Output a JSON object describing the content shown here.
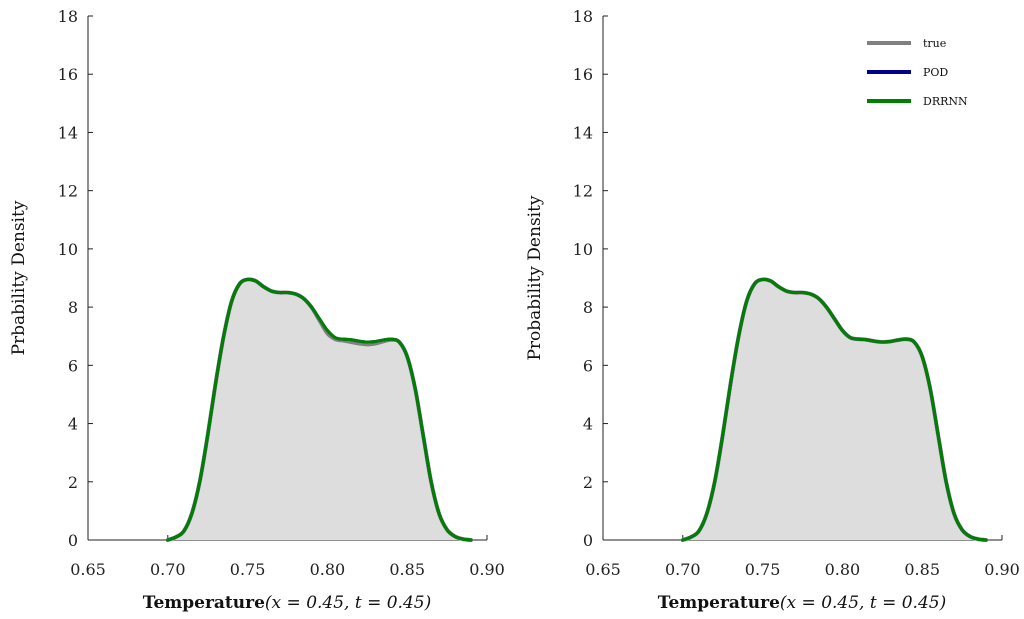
{
  "chart_data": [
    {
      "type": "area",
      "xlabel_main": "Temperature",
      "xlabel_math": "(x = 0.45,    t = 0.45)",
      "ylabel": "Prbability Density",
      "xlim": [
        0.65,
        0.9
      ],
      "ylim": [
        0,
        18
      ],
      "xticks": [
        "0.65",
        "0.70",
        "0.75",
        "0.80",
        "0.85",
        "0.90"
      ],
      "yticks": [
        "0",
        "2",
        "4",
        "6",
        "8",
        "10",
        "12",
        "14",
        "16",
        "18"
      ],
      "fill_color": "#dddddd",
      "legend": null,
      "series": [
        {
          "name": "true",
          "color": "#808080",
          "x": [
            0.7,
            0.705,
            0.71,
            0.715,
            0.72,
            0.725,
            0.73,
            0.735,
            0.74,
            0.745,
            0.75,
            0.755,
            0.76,
            0.765,
            0.77,
            0.775,
            0.78,
            0.785,
            0.79,
            0.795,
            0.8,
            0.805,
            0.81,
            0.815,
            0.82,
            0.825,
            0.83,
            0.835,
            0.84,
            0.845,
            0.85,
            0.855,
            0.86,
            0.865,
            0.87,
            0.875,
            0.88,
            0.885,
            0.89
          ],
          "y": [
            0.0,
            0.1,
            0.3,
            0.9,
            2.0,
            3.6,
            5.4,
            7.0,
            8.2,
            8.8,
            8.95,
            8.9,
            8.7,
            8.55,
            8.5,
            8.5,
            8.45,
            8.3,
            8.0,
            7.55,
            7.1,
            6.9,
            6.85,
            6.8,
            6.75,
            6.72,
            6.75,
            6.82,
            6.88,
            6.8,
            6.3,
            5.2,
            3.6,
            2.0,
            0.9,
            0.35,
            0.12,
            0.03,
            0.0
          ]
        },
        {
          "name": "POD",
          "color": "#00008b",
          "x": [
            0.7,
            0.705,
            0.71,
            0.715,
            0.72,
            0.725,
            0.73,
            0.735,
            0.74,
            0.745,
            0.75,
            0.755,
            0.76,
            0.765,
            0.77,
            0.775,
            0.78,
            0.785,
            0.79,
            0.795,
            0.8,
            0.805,
            0.81,
            0.815,
            0.82,
            0.825,
            0.83,
            0.835,
            0.84,
            0.845,
            0.85,
            0.855,
            0.86,
            0.865,
            0.87,
            0.875,
            0.88,
            0.885,
            0.89
          ],
          "y": [
            0.0,
            0.1,
            0.3,
            0.9,
            2.0,
            3.6,
            5.4,
            7.0,
            8.2,
            8.8,
            8.95,
            8.9,
            8.7,
            8.55,
            8.5,
            8.5,
            8.45,
            8.3,
            8.0,
            7.6,
            7.2,
            6.95,
            6.9,
            6.88,
            6.83,
            6.8,
            6.82,
            6.87,
            6.9,
            6.8,
            6.3,
            5.2,
            3.6,
            2.0,
            0.9,
            0.35,
            0.12,
            0.03,
            0.0
          ]
        },
        {
          "name": "DRRNN",
          "color": "#008000",
          "x": [
            0.7,
            0.705,
            0.71,
            0.715,
            0.72,
            0.725,
            0.73,
            0.735,
            0.74,
            0.745,
            0.75,
            0.755,
            0.76,
            0.765,
            0.77,
            0.775,
            0.78,
            0.785,
            0.79,
            0.795,
            0.8,
            0.805,
            0.81,
            0.815,
            0.82,
            0.825,
            0.83,
            0.835,
            0.84,
            0.845,
            0.85,
            0.855,
            0.86,
            0.865,
            0.87,
            0.875,
            0.88,
            0.885,
            0.89
          ],
          "y": [
            0.0,
            0.1,
            0.3,
            0.9,
            2.0,
            3.6,
            5.4,
            7.0,
            8.2,
            8.8,
            8.95,
            8.9,
            8.7,
            8.55,
            8.5,
            8.5,
            8.45,
            8.3,
            8.0,
            7.6,
            7.2,
            6.95,
            6.9,
            6.88,
            6.83,
            6.8,
            6.82,
            6.87,
            6.9,
            6.8,
            6.3,
            5.2,
            3.6,
            2.0,
            0.9,
            0.35,
            0.12,
            0.03,
            0.0
          ]
        }
      ]
    },
    {
      "type": "area",
      "xlabel_main": "Temperature",
      "xlabel_math": "(x = 0.45,    t = 0.45)",
      "ylabel": "Probability Density",
      "xlim": [
        0.65,
        0.9
      ],
      "ylim": [
        0,
        18
      ],
      "xticks": [
        "0.65",
        "0.70",
        "0.75",
        "0.80",
        "0.85",
        "0.90"
      ],
      "yticks": [
        "0",
        "2",
        "4",
        "6",
        "8",
        "10",
        "12",
        "14",
        "16",
        "18"
      ],
      "fill_color": "#dddddd",
      "legend": "top-right",
      "series": [
        {
          "name": "true",
          "color": "#808080",
          "x": [
            0.7,
            0.705,
            0.71,
            0.715,
            0.72,
            0.725,
            0.73,
            0.735,
            0.74,
            0.745,
            0.75,
            0.755,
            0.76,
            0.765,
            0.77,
            0.775,
            0.78,
            0.785,
            0.79,
            0.795,
            0.8,
            0.805,
            0.81,
            0.815,
            0.82,
            0.825,
            0.83,
            0.835,
            0.84,
            0.845,
            0.85,
            0.855,
            0.86,
            0.865,
            0.87,
            0.875,
            0.88,
            0.885,
            0.89
          ],
          "y": [
            0.0,
            0.1,
            0.3,
            0.9,
            2.0,
            3.6,
            5.4,
            7.0,
            8.2,
            8.8,
            8.95,
            8.9,
            8.7,
            8.55,
            8.5,
            8.5,
            8.45,
            8.3,
            8.0,
            7.6,
            7.2,
            6.95,
            6.9,
            6.88,
            6.83,
            6.8,
            6.82,
            6.87,
            6.9,
            6.8,
            6.3,
            5.2,
            3.6,
            2.0,
            0.9,
            0.35,
            0.12,
            0.03,
            0.0
          ]
        },
        {
          "name": "POD",
          "color": "#00008b",
          "x": [
            0.7,
            0.705,
            0.71,
            0.715,
            0.72,
            0.725,
            0.73,
            0.735,
            0.74,
            0.745,
            0.75,
            0.755,
            0.76,
            0.765,
            0.77,
            0.775,
            0.78,
            0.785,
            0.79,
            0.795,
            0.8,
            0.805,
            0.81,
            0.815,
            0.82,
            0.825,
            0.83,
            0.835,
            0.84,
            0.845,
            0.85,
            0.855,
            0.86,
            0.865,
            0.87,
            0.875,
            0.88,
            0.885,
            0.89
          ],
          "y": [
            0.0,
            0.1,
            0.3,
            0.9,
            2.0,
            3.6,
            5.4,
            7.0,
            8.2,
            8.8,
            8.95,
            8.9,
            8.7,
            8.55,
            8.5,
            8.5,
            8.45,
            8.3,
            8.0,
            7.6,
            7.2,
            6.95,
            6.9,
            6.88,
            6.83,
            6.8,
            6.82,
            6.87,
            6.9,
            6.8,
            6.3,
            5.2,
            3.6,
            2.0,
            0.9,
            0.35,
            0.12,
            0.03,
            0.0
          ]
        },
        {
          "name": "DRRNN",
          "color": "#008000",
          "x": [
            0.7,
            0.705,
            0.71,
            0.715,
            0.72,
            0.725,
            0.73,
            0.735,
            0.74,
            0.745,
            0.75,
            0.755,
            0.76,
            0.765,
            0.77,
            0.775,
            0.78,
            0.785,
            0.79,
            0.795,
            0.8,
            0.805,
            0.81,
            0.815,
            0.82,
            0.825,
            0.83,
            0.835,
            0.84,
            0.845,
            0.85,
            0.855,
            0.86,
            0.865,
            0.87,
            0.875,
            0.88,
            0.885,
            0.89
          ],
          "y": [
            0.0,
            0.1,
            0.3,
            0.9,
            2.0,
            3.6,
            5.4,
            7.0,
            8.2,
            8.8,
            8.95,
            8.9,
            8.7,
            8.55,
            8.5,
            8.5,
            8.45,
            8.3,
            8.0,
            7.6,
            7.2,
            6.95,
            6.9,
            6.88,
            6.83,
            6.8,
            6.82,
            6.87,
            6.9,
            6.8,
            6.3,
            5.2,
            3.6,
            2.0,
            0.9,
            0.35,
            0.12,
            0.03,
            0.0
          ]
        }
      ]
    }
  ]
}
